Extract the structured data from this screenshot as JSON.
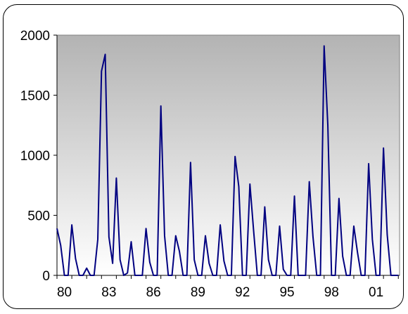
{
  "chart_data": {
    "type": "line",
    "x_tick_labels": [
      "80",
      "83",
      "86",
      "89",
      "92",
      "95",
      "98",
      "01"
    ],
    "y_tick_labels": [
      "0",
      "500",
      "1000",
      "1500",
      "2000"
    ],
    "y_ticks": [
      0,
      500,
      1000,
      1500,
      2000
    ],
    "ylim": [
      0,
      2000
    ],
    "xlim": [
      1980,
      2003.083
    ],
    "grid": false,
    "legend": "none",
    "series": [
      {
        "color": "#000080",
        "x": [
          1980.0,
          1980.25,
          1980.5,
          1980.75,
          1981.0,
          1981.25,
          1981.5,
          1981.75,
          1982.0,
          1982.25,
          1982.5,
          1982.75,
          1983.0,
          1983.25,
          1983.5,
          1983.75,
          1984.0,
          1984.25,
          1984.5,
          1984.75,
          1985.0,
          1985.25,
          1985.5,
          1985.75,
          1986.0,
          1986.25,
          1986.5,
          1986.75,
          1987.0,
          1987.25,
          1987.5,
          1987.75,
          1988.0,
          1988.25,
          1988.5,
          1988.75,
          1989.0,
          1989.25,
          1989.5,
          1989.75,
          1990.0,
          1990.25,
          1990.5,
          1990.75,
          1991.0,
          1991.25,
          1991.5,
          1991.75,
          1992.0,
          1992.25,
          1992.5,
          1992.75,
          1993.0,
          1993.25,
          1993.5,
          1993.75,
          1994.0,
          1994.25,
          1994.5,
          1994.75,
          1995.0,
          1995.25,
          1995.5,
          1995.75,
          1996.0,
          1996.25,
          1996.5,
          1996.75,
          1997.0,
          1997.25,
          1997.5,
          1997.75,
          1998.0,
          1998.25,
          1998.5,
          1998.75,
          1999.0,
          1999.25,
          1999.5,
          1999.75,
          2000.0,
          2000.25,
          2000.5,
          2000.75,
          2001.0,
          2001.25,
          2001.5,
          2001.75,
          2002.0,
          2002.25,
          2002.5,
          2002.75,
          2003.0
        ],
        "y": [
          390,
          250,
          0,
          0,
          420,
          140,
          0,
          0,
          60,
          0,
          0,
          300,
          1700,
          1840,
          320,
          100,
          810,
          130,
          0,
          20,
          280,
          0,
          0,
          0,
          390,
          110,
          0,
          0,
          1410,
          330,
          0,
          0,
          330,
          200,
          0,
          0,
          940,
          130,
          0,
          0,
          330,
          100,
          0,
          0,
          420,
          120,
          0,
          0,
          990,
          740,
          0,
          0,
          760,
          370,
          0,
          0,
          570,
          130,
          0,
          0,
          410,
          50,
          0,
          0,
          660,
          0,
          0,
          0,
          780,
          320,
          0,
          0,
          1910,
          1250,
          0,
          0,
          640,
          160,
          0,
          0,
          410,
          190,
          0,
          0,
          930,
          300,
          0,
          0,
          1060,
          340,
          0,
          0,
          0
        ]
      }
    ]
  }
}
